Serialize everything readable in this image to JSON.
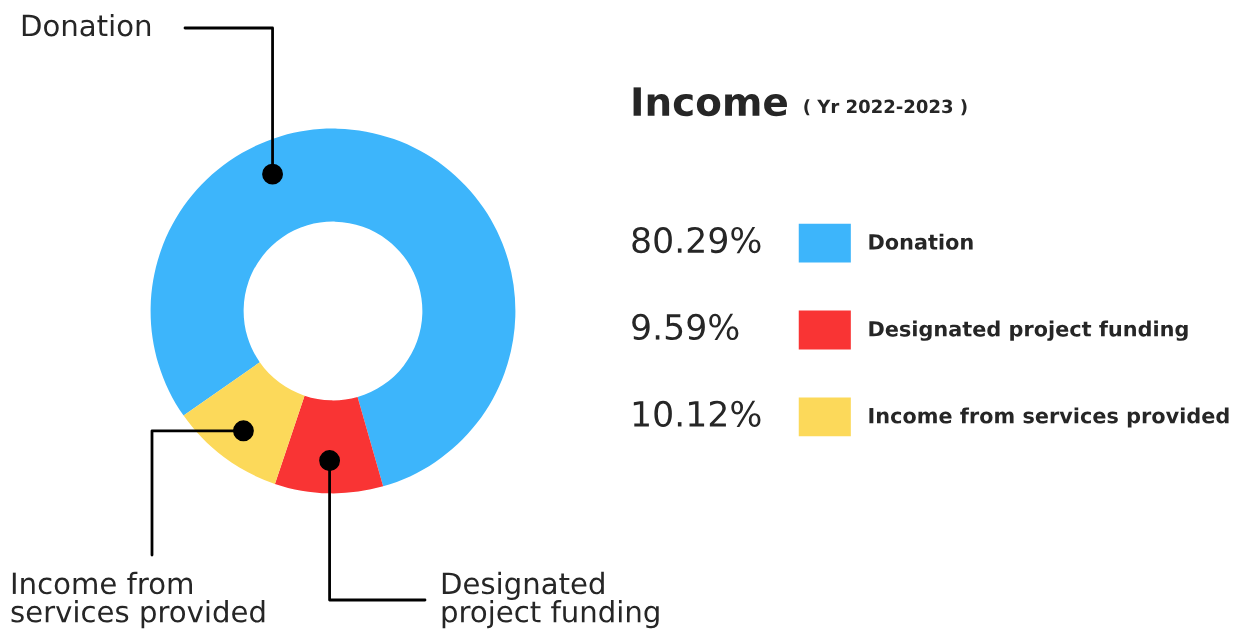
{
  "chart_data": {
    "type": "donut",
    "title": "Income",
    "subtitle": "( Yr 2022-2023 )",
    "categories": [
      "Donation",
      "Designated project funding",
      "Income from services provided"
    ],
    "values": [
      80.29,
      9.59,
      10.12
    ],
    "value_labels": [
      "80.29%",
      "9.59%",
      "10.12%"
    ],
    "colors": [
      "#3db5fb",
      "#f93434",
      "#fcd95a"
    ],
    "legend": "right"
  }
}
